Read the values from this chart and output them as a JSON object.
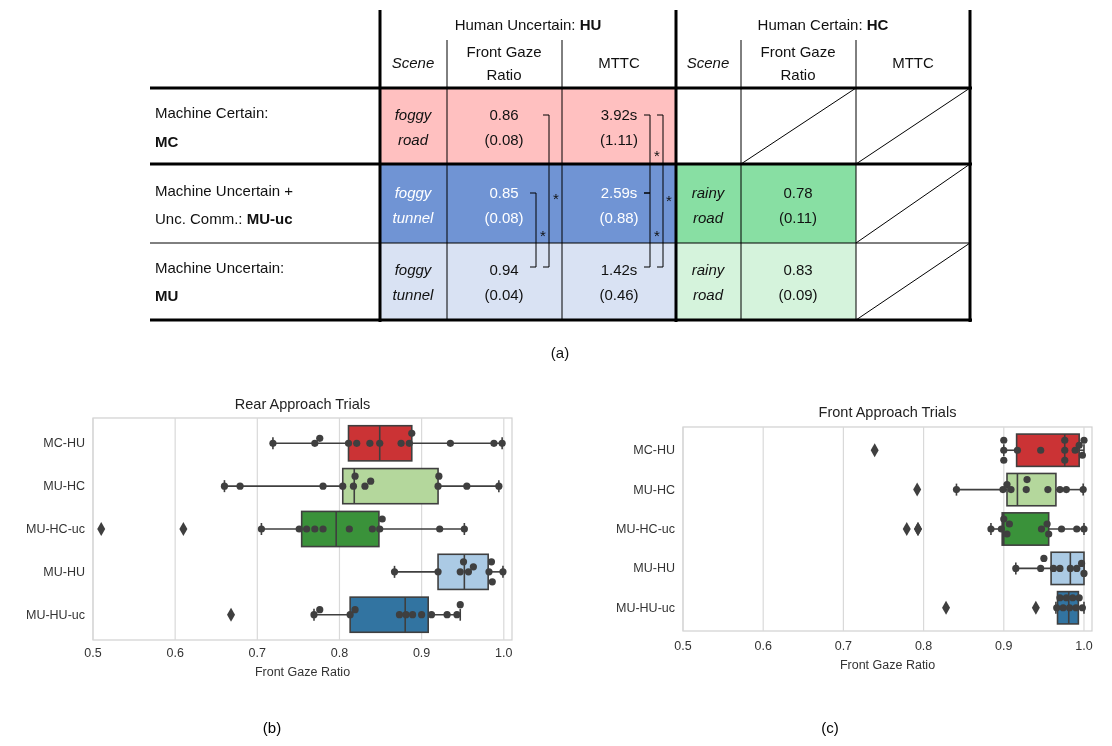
{
  "chart_data": [
    {
      "type": "other",
      "annotations": [
        "Human Uncertain: ",
        "HU",
        "Human Certain: ",
        "HC",
        "Scene",
        "Front Gaze",
        "Ratio",
        "MTTC",
        "Scene",
        "Front Gaze",
        "Ratio",
        "MTTC",
        "Machine Certain:",
        "MC",
        "Machine Uncertain +",
        "Unc. Comm.: ",
        "MU-uc",
        "Machine Uncertain:",
        "MU",
        "foggy",
        "road",
        "0.86",
        "(0.08)",
        "3.92s",
        "(1.11)",
        "foggy",
        "tunnel",
        "0.85",
        "(0.08)",
        "2.59s",
        "(0.88)",
        "rainy",
        "road",
        "0.78",
        "(0.11)",
        "foggy",
        "tunnel",
        "0.94",
        "(0.04)",
        "1.42s",
        "(0.46)",
        "rainy",
        "road",
        "0.83",
        "(0.09)",
        "*",
        "*",
        "*",
        "*",
        "*",
        "(a)"
      ]
    },
    {
      "type": "box",
      "title": "Rear Approach Trials",
      "xlabel": "Front Gaze Ratio",
      "orientation": "horizontal",
      "grid": "x",
      "categories": [
        "MC-HU",
        "MU-HC",
        "MU-HC-uc",
        "MU-HU",
        "MU-HU-uc"
      ],
      "colors": [
        "#cb3335",
        "#b4d79c",
        "#3a923a",
        "#abcae4",
        "#3274a1"
      ],
      "xlim": [
        0.5,
        1.01
      ],
      "xticks": [
        0.5,
        0.6,
        0.7,
        0.8,
        0.9,
        {
          "value": 1,
          "label": "1.0"
        }
      ],
      "boxes": [
        {
          "low": 0.719,
          "q1": 0.811,
          "median": 0.849,
          "q3": 0.888,
          "high": 0.998
        },
        {
          "low": 0.66,
          "q1": 0.804,
          "median": 0.818,
          "q3": 0.92,
          "high": 0.994
        },
        {
          "low": 0.705,
          "q1": 0.754,
          "median": 0.796,
          "q3": 0.848,
          "high": 0.952,
          "outliers": [
            0.51,
            0.61
          ]
        },
        {
          "low": 0.867,
          "q1": 0.92,
          "median": 0.952,
          "q3": 0.981,
          "high": 0.999
        },
        {
          "low": 0.769,
          "q1": 0.813,
          "median": 0.88,
          "q3": 0.908,
          "high": 0.947,
          "outliers": [
            0.668
          ]
        }
      ],
      "series": [
        {
          "type": "scatter",
          "color": "#3f3f3f",
          "x": [
            "MC-HU",
            "MC-HU",
            "MC-HU",
            "MC-HU",
            "MC-HU",
            "MC-HU",
            "MC-HU",
            "MC-HU",
            "MC-HU",
            "MC-HU",
            "MC-HU",
            "MC-HU",
            "MC-HU"
          ],
          "values": [
            0.719,
            0.77,
            0.776,
            0.811,
            0.821,
            0.837,
            0.849,
            0.875,
            0.885,
            0.888,
            0.935,
            0.988,
            0.998
          ]
        },
        {
          "type": "scatter",
          "color": "#3f3f3f",
          "x": [
            "MU-HC",
            "MU-HC",
            "MU-HC",
            "MU-HC",
            "MU-HC",
            "MU-HC",
            "MU-HC",
            "MU-HC",
            "MU-HC",
            "MU-HC",
            "MU-HC",
            "MU-HC"
          ],
          "values": [
            0.66,
            0.679,
            0.78,
            0.804,
            0.817,
            0.819,
            0.831,
            0.838,
            0.92,
            0.921,
            0.955,
            0.994
          ]
        },
        {
          "type": "scatter",
          "color": "#3f3f3f",
          "x": [
            "MU-HC-uc",
            "MU-HC-uc",
            "MU-HC-uc",
            "MU-HC-uc",
            "MU-HC-uc",
            "MU-HC-uc",
            "MU-HC-uc",
            "MU-HC-uc",
            "MU-HC-uc",
            "MU-HC-uc",
            "MU-HC-uc"
          ],
          "values": [
            0.705,
            0.751,
            0.76,
            0.77,
            0.78,
            0.812,
            0.84,
            0.849,
            0.852,
            0.922,
            0.952
          ]
        },
        {
          "type": "scatter",
          "color": "#3f3f3f",
          "x": [
            "MU-HU",
            "MU-HU",
            "MU-HU",
            "MU-HU",
            "MU-HU",
            "MU-HU",
            "MU-HU",
            "MU-HU",
            "MU-HU",
            "MU-HU"
          ],
          "values": [
            0.867,
            0.92,
            0.947,
            0.951,
            0.957,
            0.963,
            0.982,
            0.985,
            0.986,
            0.999
          ]
        },
        {
          "type": "scatter",
          "color": "#3f3f3f",
          "x": [
            "MU-HU-uc",
            "MU-HU-uc",
            "MU-HU-uc",
            "MU-HU-uc",
            "MU-HU-uc",
            "MU-HU-uc",
            "MU-HU-uc",
            "MU-HU-uc",
            "MU-HU-uc",
            "MU-HU-uc",
            "MU-HU-uc",
            "MU-HU-uc"
          ],
          "values": [
            0.769,
            0.776,
            0.813,
            0.819,
            0.873,
            0.881,
            0.889,
            0.9,
            0.912,
            0.931,
            0.943,
            0.947
          ]
        }
      ],
      "annotations": [
        "(b)"
      ]
    },
    {
      "type": "box",
      "title": "Front Approach Trials",
      "xlabel": "Front Gaze Ratio",
      "orientation": "horizontal",
      "grid": "x",
      "categories": [
        "MC-HU",
        "MU-HC",
        "MU-HC-uc",
        "MU-HU",
        "MU-HU-uc"
      ],
      "colors": [
        "#cb3335",
        "#b4d79c",
        "#3a923a",
        "#abcae4",
        "#3274a1"
      ],
      "xlim": [
        0.5,
        1.01
      ],
      "xticks": [
        0.5,
        0.6,
        0.7,
        0.8,
        0.9,
        {
          "value": 1,
          "label": "1.0"
        }
      ],
      "boxes": [
        {
          "low": 0.9,
          "q1": 0.916,
          "median": 0.976,
          "q3": 0.994,
          "high": 1.0,
          "outliers": [
            0.739
          ]
        },
        {
          "low": 0.841,
          "q1": 0.904,
          "median": 0.917,
          "q3": 0.965,
          "high": 0.999,
          "outliers": [
            0.792
          ]
        },
        {
          "low": 0.884,
          "q1": 0.898,
          "median": 0.9,
          "q3": 0.956,
          "high": 1.0,
          "outliers": [
            0.779,
            0.793,
            0.793
          ]
        },
        {
          "low": 0.915,
          "q1": 0.959,
          "median": 0.983,
          "q3": 1.0,
          "high": 1.0
        },
        {
          "low": 0.965,
          "q1": 0.967,
          "median": 0.981,
          "q3": 0.993,
          "high": 1.0,
          "outliers": [
            0.828,
            0.94
          ]
        }
      ],
      "series": [
        {
          "type": "scatter",
          "color": "#3f3f3f",
          "x": [
            "MC-HU",
            "MC-HU",
            "MC-HU",
            "MC-HU",
            "MC-HU",
            "MC-HU",
            "MC-HU",
            "MC-HU",
            "MC-HU",
            "MC-HU",
            "MC-HU",
            "MC-HU"
          ],
          "values": [
            0.9,
            0.9,
            0.9,
            0.917,
            0.946,
            0.976,
            0.976,
            0.976,
            0.989,
            0.994,
            0.998,
            1.0
          ]
        },
        {
          "type": "scatter",
          "color": "#3f3f3f",
          "x": [
            "MU-HC",
            "MU-HC",
            "MU-HC",
            "MU-HC",
            "MU-HC",
            "MU-HC",
            "MU-HC",
            "MU-HC",
            "MU-HC",
            "MU-HC"
          ],
          "values": [
            0.841,
            0.899,
            0.904,
            0.909,
            0.928,
            0.929,
            0.955,
            0.97,
            0.978,
            0.999
          ]
        },
        {
          "type": "scatter",
          "color": "#3f3f3f",
          "x": [
            "MU-HC-uc",
            "MU-HC-uc",
            "MU-HC-uc",
            "MU-HC-uc",
            "MU-HC-uc",
            "MU-HC-uc",
            "MU-HC-uc",
            "MU-HC-uc",
            "MU-HC-uc",
            "MU-HC-uc",
            "MU-HC-uc"
          ],
          "values": [
            0.884,
            0.897,
            0.9,
            0.904,
            0.907,
            0.947,
            0.954,
            0.956,
            0.972,
            0.991,
            1.0
          ]
        },
        {
          "type": "scatter",
          "color": "#3f3f3f",
          "x": [
            "MU-HU",
            "MU-HU",
            "MU-HU",
            "MU-HU",
            "MU-HU",
            "MU-HU",
            "MU-HU",
            "MU-HU",
            "MU-HU"
          ],
          "values": [
            0.915,
            0.946,
            0.95,
            0.962,
            0.97,
            0.983,
            0.991,
            0.997,
            1.0
          ]
        },
        {
          "type": "scatter",
          "color": "#3f3f3f",
          "x": [
            "MU-HU-uc",
            "MU-HU-uc",
            "MU-HU-uc",
            "MU-HU-uc",
            "MU-HU-uc",
            "MU-HU-uc",
            "MU-HU-uc",
            "MU-HU-uc",
            "MU-HU-uc"
          ],
          "values": [
            0.966,
            0.97,
            0.974,
            0.978,
            0.982,
            0.986,
            0.99,
            0.994,
            0.998
          ]
        }
      ],
      "annotations": [
        "(c)"
      ]
    }
  ]
}
